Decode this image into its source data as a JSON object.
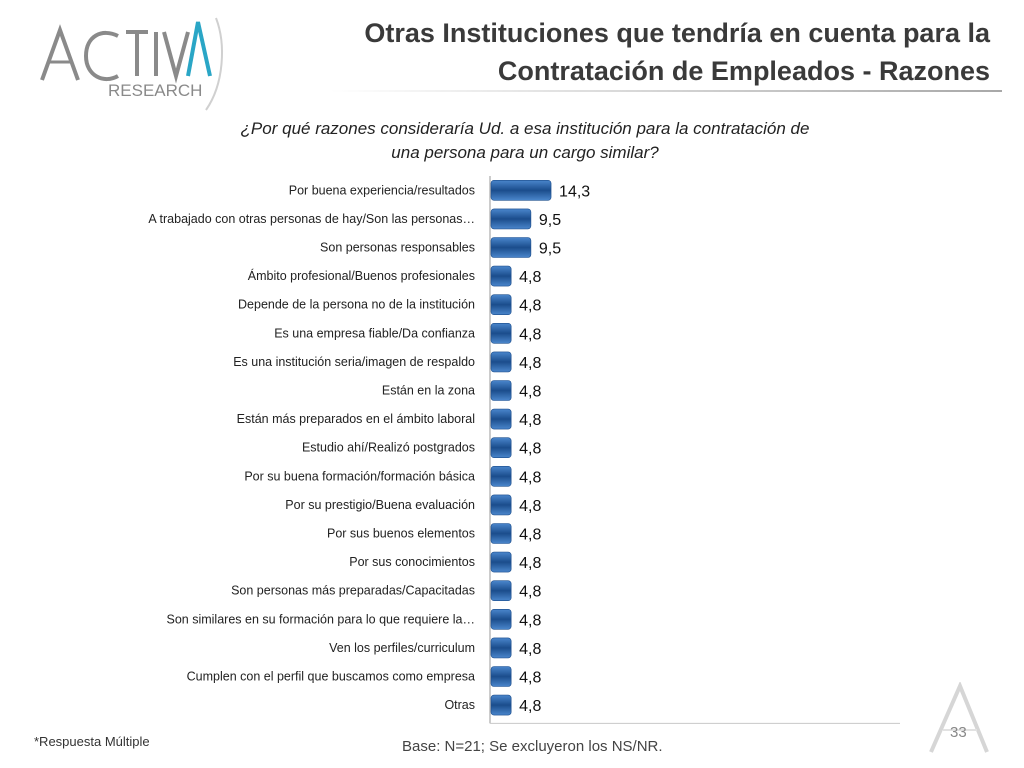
{
  "header": {
    "logo_text": "ACTIVA",
    "logo_subtext": "RESEARCH",
    "title_line1": "Otras Instituciones que tendría en cuenta para la",
    "title_line2": "Contratación de Empleados - Razones"
  },
  "question": {
    "line1": "¿Por qué razones consideraría Ud. a esa institución para la contratación de",
    "line2": "una persona para un cargo similar?"
  },
  "colors": {
    "bar_dark": "#1b4d8c",
    "bar_light": "#4a86cc",
    "title": "#3a3a3a"
  },
  "chart_data": {
    "type": "bar",
    "orientation": "horizontal",
    "categories": [
      "Por buena experiencia/resultados",
      "A trabajado con otras personas de hay/Son las personas…",
      "Son personas responsables",
      "Ámbito profesional/Buenos profesionales",
      "Depende de la persona no de la institución",
      "Es una empresa fiable/Da confianza",
      "Es una institución seria/imagen de respaldo",
      "Están en la zona",
      "Están más preparados en el ámbito laboral",
      "Estudio ahí/Realizó postgrados",
      "Por su buena formación/formación básica",
      "Por su prestigio/Buena evaluación",
      "Por sus buenos elementos",
      "Por sus conocimientos",
      "Son personas más preparadas/Capacitadas",
      "Son similares en su formación para lo que requiere la…",
      "Ven los perfiles/curriculum",
      "Cumplen con el perfil que buscamos como empresa",
      "Otras"
    ],
    "values": [
      14.3,
      9.5,
      9.5,
      4.8,
      4.8,
      4.8,
      4.8,
      4.8,
      4.8,
      4.8,
      4.8,
      4.8,
      4.8,
      4.8,
      4.8,
      4.8,
      4.8,
      4.8,
      4.8
    ],
    "value_labels": [
      "14,3",
      "9,5",
      "9,5",
      "4,8",
      "4,8",
      "4,8",
      "4,8",
      "4,8",
      "4,8",
      "4,8",
      "4,8",
      "4,8",
      "4,8",
      "4,8",
      "4,8",
      "4,8",
      "4,8",
      "4,8",
      "4,8"
    ],
    "xlim": [
      0,
      100
    ],
    "grid": false,
    "legend": "none"
  },
  "footer": {
    "footnote": "*Respuesta Múltiple",
    "base": "Base: N=21; Se excluyeron los NS/NR.",
    "page_number": "33"
  }
}
